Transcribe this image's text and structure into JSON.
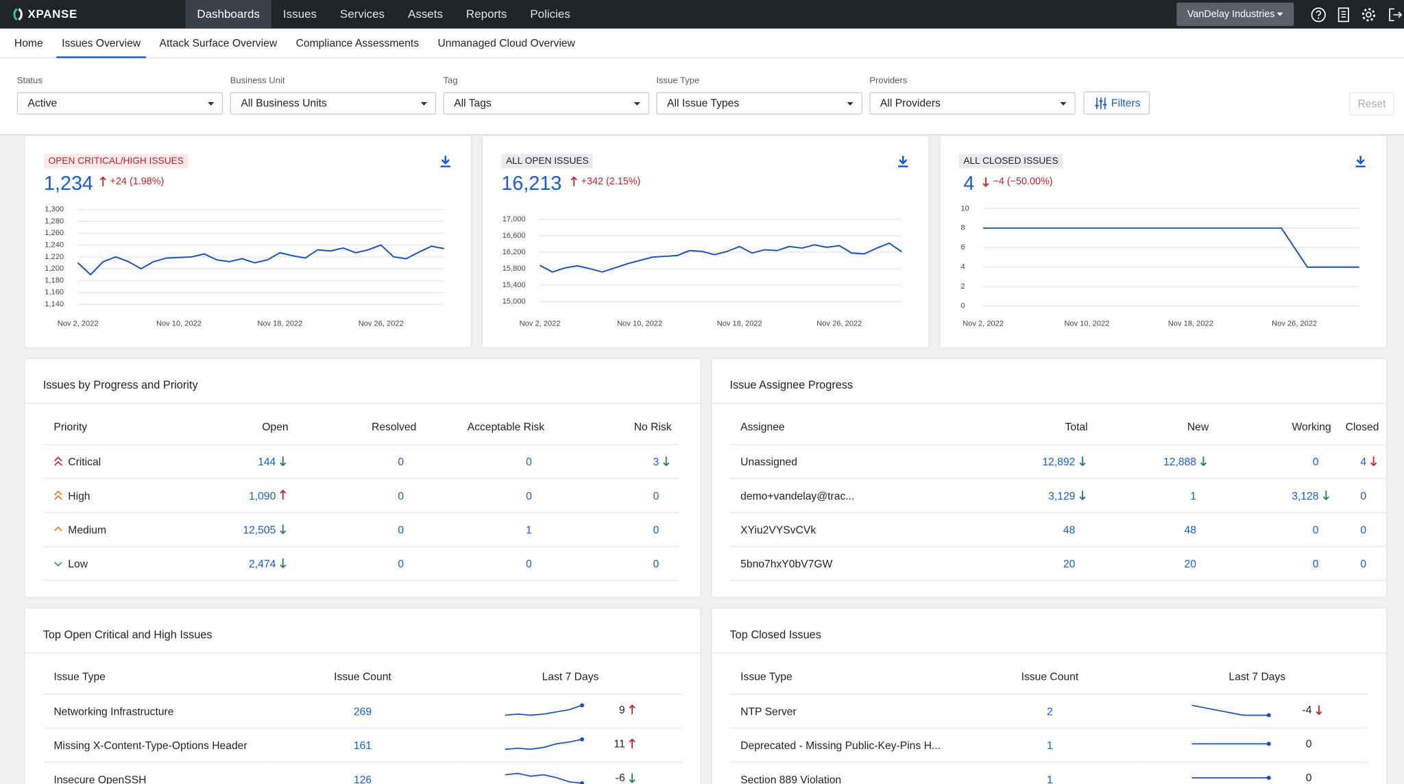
{
  "nav": {
    "logo": "XPANSE",
    "items": [
      "Dashboards",
      "Issues",
      "Services",
      "Assets",
      "Reports",
      "Policies"
    ],
    "org": "VanDelay Industries"
  },
  "tabs": [
    "Home",
    "Issues Overview",
    "Attack Surface Overview",
    "Compliance Assessments",
    "Unmanaged Cloud Overview"
  ],
  "filters": [
    {
      "label": "Status",
      "value": "Active"
    },
    {
      "label": "Business Unit",
      "value": "All Business Units"
    },
    {
      "label": "Tag",
      "value": "All Tags"
    },
    {
      "label": "Issue Type",
      "value": "All Issue Types"
    },
    {
      "label": "Providers",
      "value": "All Providers"
    }
  ],
  "filters_button": "Filters",
  "reset": "Reset",
  "kpis": [
    {
      "title": "OPEN CRITICAL/HIGH ISSUES",
      "value": "1,234",
      "change": "+24 (1.98%)",
      "chart": {
        "type": "line",
        "color": "#1b4fb5",
        "grid": true,
        "x": [
          "Nov 2, 2022",
          "Nov 3, 2022",
          "Nov 4, 2022",
          "Nov 5, 2022",
          "Nov 6, 2022",
          "Nov 7, 2022",
          "Nov 8, 2022",
          "Nov 9, 2022",
          "Nov 10, 2022",
          "Nov 11, 2022",
          "Nov 12, 2022",
          "Nov 13, 2022",
          "Nov 14, 2022",
          "Nov 15, 2022",
          "Nov 16, 2022",
          "Nov 17, 2022",
          "Nov 18, 2022",
          "Nov 19, 2022",
          "Nov 20, 2022",
          "Nov 21, 2022",
          "Nov 22, 2022",
          "Nov 23, 2022",
          "Nov 24, 2022",
          "Nov 25, 2022",
          "Nov 26, 2022",
          "Nov 27, 2022",
          "Nov 28, 2022",
          "Nov 29, 2022",
          "Nov 30, 2022",
          "Dec 1, 2022"
        ],
        "values": [
          1210,
          1190,
          1212,
          1220,
          1212,
          1200,
          1212,
          1218,
          1219,
          1220,
          1225,
          1215,
          1212,
          1217,
          1210,
          1215,
          1227,
          1222,
          1218,
          1232,
          1230,
          1235,
          1227,
          1232,
          1240,
          1220,
          1217,
          1228,
          1238,
          1234
        ],
        "xticks": [
          "Nov 2, 2022",
          "Nov 10, 2022",
          "Nov 18, 2022",
          "Nov 26, 2022"
        ],
        "ylim": [
          1140,
          1300
        ],
        "yticks": [
          {
            "value": 1140,
            "label": "1,140"
          },
          {
            "value": 1160,
            "label": "1,160"
          },
          {
            "value": 1180,
            "label": "1,180"
          },
          {
            "value": 1200,
            "label": "1,200"
          },
          {
            "value": 1220,
            "label": "1,220"
          },
          {
            "value": 1240,
            "label": "1,240"
          },
          {
            "value": 1260,
            "label": "1,260"
          },
          {
            "value": 1280,
            "label": "1,280"
          },
          {
            "value": 1300,
            "label": "1,300"
          }
        ]
      }
    },
    {
      "title": "ALL OPEN ISSUES",
      "value": "16,213",
      "change": "+342 (2.15%)",
      "chart": {
        "type": "line",
        "color": "#1b4fb5",
        "grid": true,
        "x": [
          "Nov 2, 2022",
          "Nov 3, 2022",
          "Nov 4, 2022",
          "Nov 5, 2022",
          "Nov 6, 2022",
          "Nov 7, 2022",
          "Nov 8, 2022",
          "Nov 9, 2022",
          "Nov 10, 2022",
          "Nov 11, 2022",
          "Nov 12, 2022",
          "Nov 13, 2022",
          "Nov 14, 2022",
          "Nov 15, 2022",
          "Nov 16, 2022",
          "Nov 17, 2022",
          "Nov 18, 2022",
          "Nov 19, 2022",
          "Nov 20, 2022",
          "Nov 21, 2022",
          "Nov 22, 2022",
          "Nov 23, 2022",
          "Nov 24, 2022",
          "Nov 25, 2022",
          "Nov 26, 2022",
          "Nov 27, 2022",
          "Nov 28, 2022",
          "Nov 29, 2022",
          "Nov 30, 2022",
          "Dec 1, 2022"
        ],
        "values": [
          15880,
          15720,
          15820,
          15870,
          15800,
          15720,
          15820,
          15920,
          16000,
          16080,
          16100,
          16120,
          16240,
          16220,
          16140,
          16220,
          16340,
          16180,
          16260,
          16240,
          16340,
          16300,
          16380,
          16320,
          16360,
          16180,
          16160,
          16300,
          16420,
          16213
        ],
        "xticks": [
          "Nov 2, 2022",
          "Nov 10, 2022",
          "Nov 18, 2022",
          "Nov 26, 2022"
        ],
        "ylim": [
          15000,
          17000
        ],
        "yticks": [
          {
            "value": 15000,
            "label": "15,000"
          },
          {
            "value": 15400,
            "label": "15,400"
          },
          {
            "value": 15800,
            "label": "15,800"
          },
          {
            "value": 16200,
            "label": "16,200"
          },
          {
            "value": 16600,
            "label": "16,600"
          },
          {
            "value": 17000,
            "label": "17,000"
          }
        ]
      }
    },
    {
      "title": "ALL CLOSED ISSUES",
      "value": "4",
      "change": "−4 (−50.00%)",
      "chart": {
        "type": "line",
        "color": "#1b4fb5",
        "grid": true,
        "x": [
          "Nov 2, 2022",
          "Nov 3, 2022",
          "Nov 4, 2022",
          "Nov 5, 2022",
          "Nov 6, 2022",
          "Nov 7, 2022",
          "Nov 8, 2022",
          "Nov 9, 2022",
          "Nov 10, 2022",
          "Nov 11, 2022",
          "Nov 12, 2022",
          "Nov 13, 2022",
          "Nov 14, 2022",
          "Nov 15, 2022",
          "Nov 16, 2022",
          "Nov 17, 2022",
          "Nov 18, 2022",
          "Nov 19, 2022",
          "Nov 20, 2022",
          "Nov 21, 2022",
          "Nov 22, 2022",
          "Nov 23, 2022",
          "Nov 24, 2022",
          "Nov 25, 2022",
          "Nov 26, 2022",
          "Nov 27, 2022",
          "Nov 28, 2022",
          "Nov 29, 2022",
          "Nov 30, 2022",
          "Dec 1, 2022"
        ],
        "values": [
          8,
          8,
          8,
          8,
          8,
          8,
          8,
          8,
          8,
          8,
          8,
          8,
          8,
          8,
          8,
          8,
          8,
          8,
          8,
          8,
          8,
          8,
          8,
          8,
          6,
          4,
          4,
          4,
          4,
          4
        ],
        "xticks": [
          "Nov 2, 2022",
          "Nov 10, 2022",
          "Nov 18, 2022",
          "Nov 26, 2022"
        ],
        "ylim": [
          0,
          10
        ],
        "yticks": [
          0,
          2,
          4,
          6,
          8,
          10
        ]
      }
    }
  ],
  "progress": {
    "title": "Issues by Progress and Priority",
    "columns": [
      "Priority",
      "Open",
      "Resolved",
      "Acceptable Risk",
      "No Risk"
    ],
    "rows": [
      [
        "Critical",
        "144",
        "0",
        "0",
        "3"
      ],
      [
        "High",
        "1,090",
        "0",
        "0",
        "0"
      ],
      [
        "Medium",
        "12,505",
        "0",
        "1",
        "0"
      ],
      [
        "Low",
        "2,474",
        "0",
        "0",
        "0"
      ]
    ]
  },
  "assignees": {
    "title": "Issue Assignee Progress",
    "columns": [
      "Assignee",
      "Total",
      "New",
      "Working",
      "Closed"
    ],
    "rows": [
      [
        "Unassigned",
        "12,892",
        "12,888",
        "0",
        "4"
      ],
      [
        "demo+vandelay@trac...",
        "3,129",
        "1",
        "3,128",
        "0"
      ],
      [
        "XYiu2VYSvCVk",
        "48",
        "48",
        "0",
        "0"
      ],
      [
        "5bno7hxY0bV7GW",
        "20",
        "20",
        "0",
        "0"
      ]
    ]
  },
  "top_open": {
    "title": "Top Open Critical and High Issues",
    "columns": [
      "Issue Type",
      "Issue Count",
      "Last 7 Days"
    ],
    "rows": [
      {
        "type": "Networking Infrastructure",
        "count": "269",
        "spark": [
          260,
          261,
          260,
          261,
          263,
          265,
          269
        ],
        "delta": "9"
      },
      {
        "type": "Missing X-Content-Type-Options Header",
        "count": "161",
        "spark": [
          150,
          151,
          150,
          152,
          156,
          158,
          161
        ],
        "delta": "11"
      },
      {
        "type": "Insecure OpenSSH",
        "count": "126",
        "spark": [
          132,
          133,
          131,
          132,
          130,
          127,
          126
        ],
        "delta": "-6"
      }
    ]
  },
  "top_closed": {
    "title": "Top Closed Issues",
    "columns": [
      "Issue Type",
      "Issue Count",
      "Last 7 Days"
    ],
    "rows": [
      {
        "type": "NTP Server",
        "count": "2",
        "spark": [
          6,
          5,
          4,
          3,
          2,
          2,
          2
        ],
        "delta": "-4"
      },
      {
        "type": "Deprecated - Missing Public-Key-Pins H...",
        "count": "1",
        "spark": [
          1,
          1,
          1,
          1,
          1,
          1,
          1
        ],
        "delta": "0"
      },
      {
        "type": "Section 889 Violation",
        "count": "1",
        "spark": [
          1,
          1,
          1,
          1,
          1,
          1,
          1
        ],
        "delta": "0"
      }
    ]
  }
}
